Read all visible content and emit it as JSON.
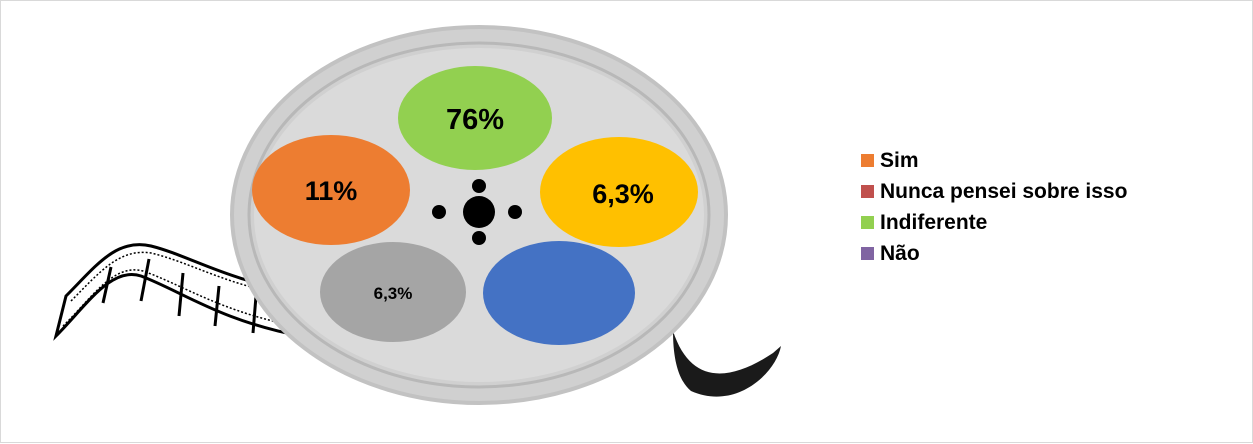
{
  "chart_data": {
    "type": "pie",
    "title": "",
    "categories": [
      "Sim",
      "Nunca pensei sobre isso",
      "Indiferente",
      "Não"
    ],
    "values": [
      11,
      null,
      76,
      null
    ],
    "data_labels": [
      "11%",
      "6,3%",
      "76%",
      "6,3%"
    ],
    "legend_position": "right",
    "colors": {
      "Sim": "#ed7d31",
      "Nunca pensei sobre isso": "#c0504d",
      "Indiferente": "#92d050",
      "Não": "#8064a2"
    },
    "reel_circle_colors": [
      "#92d050",
      "#ed7d31",
      "#ffc000",
      "#a5a5a5",
      "#4472c4"
    ]
  },
  "legend": {
    "items": [
      {
        "label": "Sim",
        "color": "#ed7d31"
      },
      {
        "label": "Nunca pensei sobre isso",
        "color": "#c0504d"
      },
      {
        "label": "Indiferente",
        "color": "#92d050"
      },
      {
        "label": "Não",
        "color": "#8064a2"
      }
    ]
  },
  "reel": {
    "labels": [
      "76%",
      "11%",
      "6,3%",
      "6,3%",
      ""
    ]
  }
}
